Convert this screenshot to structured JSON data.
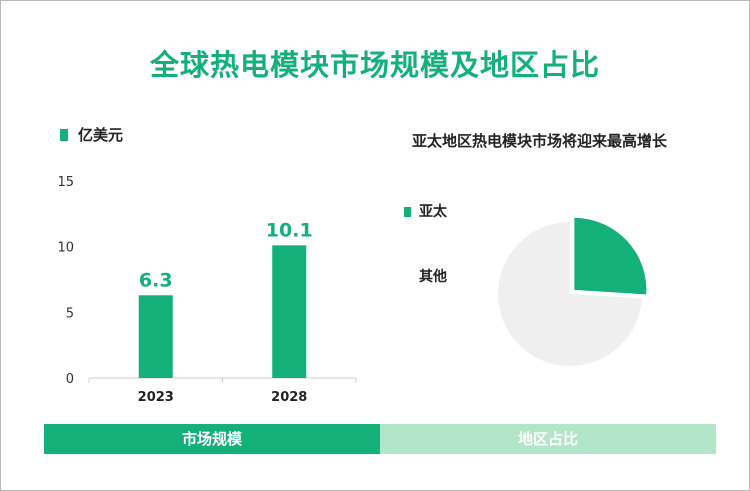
{
  "title": "全球热电模块市场规模及地区占比",
  "colors": {
    "accent": "#14b07a",
    "accent_light": "#b3e5c9",
    "pie_other": "#efefef"
  },
  "chart_data": [
    {
      "type": "bar",
      "legend": "亿美元",
      "categories": [
        "2023",
        "2028"
      ],
      "values": [
        6.3,
        10.1
      ],
      "value_labels": [
        "6.3",
        "10.1"
      ],
      "yticks": [
        "0",
        "5",
        "10",
        "15"
      ],
      "ylim": [
        0,
        15
      ],
      "grid": false
    },
    {
      "type": "pie",
      "title": "亚太地区热电模块市场将迎来最高增长",
      "slices": [
        {
          "label": "亚太",
          "value": 26,
          "color": "#14b07a"
        },
        {
          "label": "其他",
          "value": 74,
          "color": "#efefef"
        }
      ]
    }
  ],
  "tabs": [
    {
      "label": "市场规模"
    },
    {
      "label": "地区占比"
    }
  ]
}
